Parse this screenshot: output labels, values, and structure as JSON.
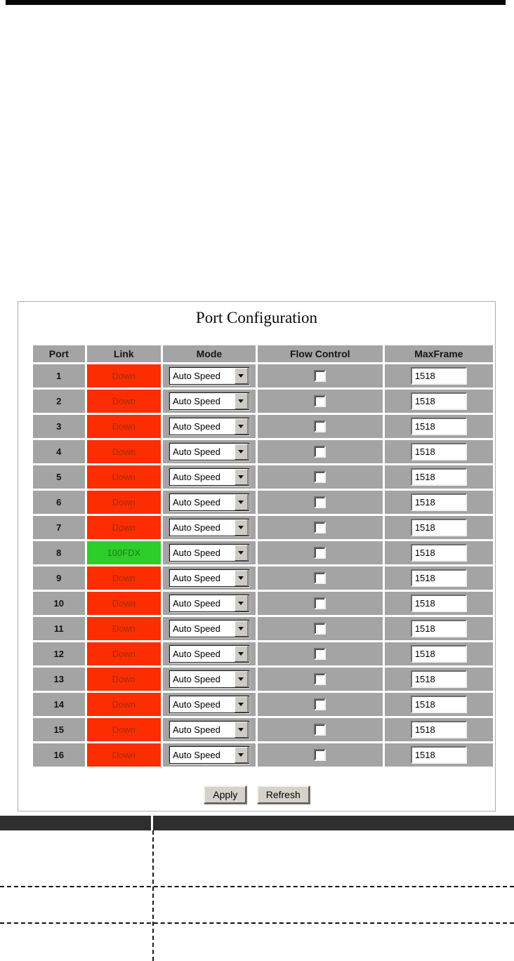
{
  "panel": {
    "title": "Port Configuration"
  },
  "table": {
    "headers": [
      "Port",
      "Link",
      "Mode",
      "Flow Control",
      "MaxFrame"
    ],
    "rows": [
      {
        "port": "1",
        "link": "Down",
        "status": "down",
        "mode": "Auto Speed",
        "flow_control_checked": false,
        "max_frame": "1518"
      },
      {
        "port": "2",
        "link": "Down",
        "status": "down",
        "mode": "Auto Speed",
        "flow_control_checked": false,
        "max_frame": "1518"
      },
      {
        "port": "3",
        "link": "Down",
        "status": "down",
        "mode": "Auto Speed",
        "flow_control_checked": false,
        "max_frame": "1518"
      },
      {
        "port": "4",
        "link": "Down",
        "status": "down",
        "mode": "Auto Speed",
        "flow_control_checked": false,
        "max_frame": "1518"
      },
      {
        "port": "5",
        "link": "Down",
        "status": "down",
        "mode": "Auto Speed",
        "flow_control_checked": false,
        "max_frame": "1518"
      },
      {
        "port": "6",
        "link": "Down",
        "status": "down",
        "mode": "Auto Speed",
        "flow_control_checked": false,
        "max_frame": "1518"
      },
      {
        "port": "7",
        "link": "Down",
        "status": "down",
        "mode": "Auto Speed",
        "flow_control_checked": false,
        "max_frame": "1518"
      },
      {
        "port": "8",
        "link": "100FDX",
        "status": "up",
        "mode": "Auto Speed",
        "flow_control_checked": false,
        "max_frame": "1518"
      },
      {
        "port": "9",
        "link": "Down",
        "status": "down",
        "mode": "Auto Speed",
        "flow_control_checked": false,
        "max_frame": "1518"
      },
      {
        "port": "10",
        "link": "Down",
        "status": "down",
        "mode": "Auto Speed",
        "flow_control_checked": false,
        "max_frame": "1518"
      },
      {
        "port": "11",
        "link": "Down",
        "status": "down",
        "mode": "Auto Speed",
        "flow_control_checked": false,
        "max_frame": "1518"
      },
      {
        "port": "12",
        "link": "Down",
        "status": "down",
        "mode": "Auto Speed",
        "flow_control_checked": false,
        "max_frame": "1518"
      },
      {
        "port": "13",
        "link": "Down",
        "status": "down",
        "mode": "Auto Speed",
        "flow_control_checked": false,
        "max_frame": "1518"
      },
      {
        "port": "14",
        "link": "Down",
        "status": "down",
        "mode": "Auto Speed",
        "flow_control_checked": false,
        "max_frame": "1518"
      },
      {
        "port": "15",
        "link": "Down",
        "status": "down",
        "mode": "Auto Speed",
        "flow_control_checked": false,
        "max_frame": "1518"
      },
      {
        "port": "16",
        "link": "Down",
        "status": "down",
        "mode": "Auto Speed",
        "flow_control_checked": false,
        "max_frame": "1518"
      }
    ]
  },
  "buttons": {
    "apply": "Apply",
    "refresh": "Refresh"
  },
  "colors": {
    "link_down_bg": "#fb2d01",
    "link_down_text": "#9e3000",
    "link_up_bg": "#2dce2a",
    "link_up_text": "#1e7c1c",
    "cell_gray": "#a4a4a4",
    "notes_bar": "#2e2e2e"
  }
}
